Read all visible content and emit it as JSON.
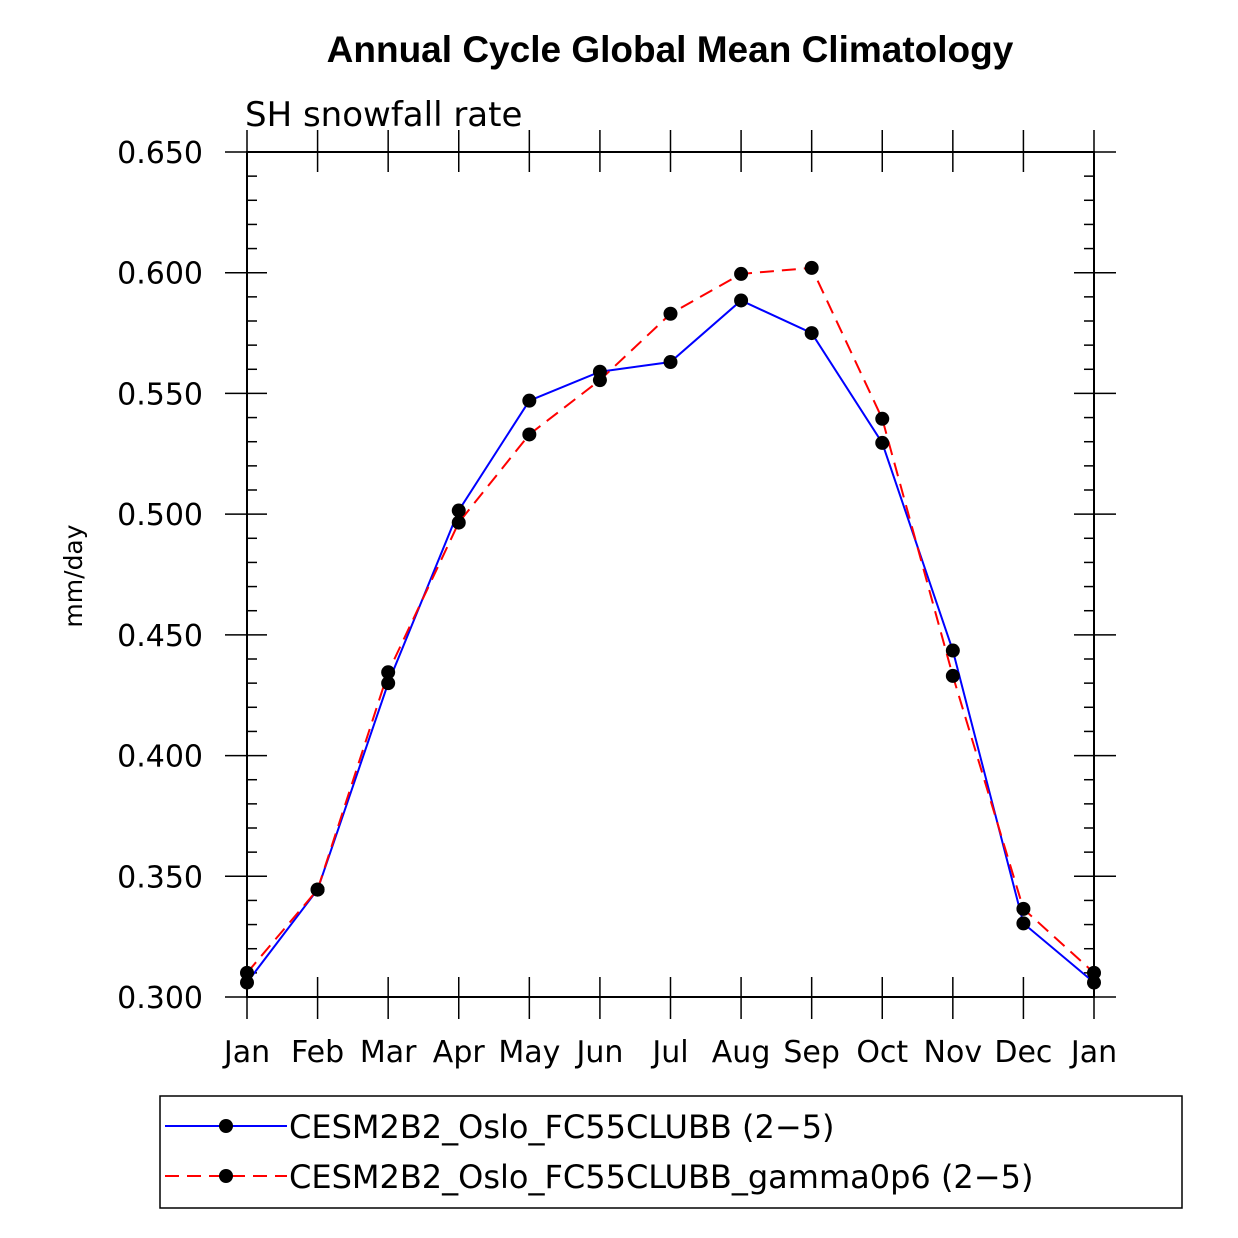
{
  "chart_data": {
    "type": "line",
    "title": "Annual Cycle Global Mean Climatology",
    "subtitle": "SH snowfall rate",
    "ylabel": "mm/day",
    "xlabel": "",
    "categories": [
      "Jan",
      "Feb",
      "Mar",
      "Apr",
      "May",
      "Jun",
      "Jul",
      "Aug",
      "Sep",
      "Oct",
      "Nov",
      "Dec",
      "Jan"
    ],
    "ylim": [
      0.3,
      0.65
    ],
    "yticks": [
      "0.300",
      "0.350",
      "0.400",
      "0.450",
      "0.500",
      "0.550",
      "0.600",
      "0.650"
    ],
    "legend_position": "bottom",
    "series": [
      {
        "name": "CESM2B2_Oslo_FC55CLUBB (2-5)",
        "legend_label": "CESM2B2_Oslo_FC55CLUBB (2−5)",
        "color": "#0000ff",
        "dash": "solid",
        "values": [
          0.306,
          0.3445,
          0.43,
          0.5015,
          0.547,
          0.559,
          0.563,
          0.5885,
          0.575,
          0.5295,
          0.4435,
          0.3305,
          0.306
        ]
      },
      {
        "name": "CESM2B2_Oslo_FC55CLUBB_gamma0p6 (2-5)",
        "legend_label": "CESM2B2_Oslo_FC55CLUBB_gamma0p6 (2−5)",
        "color": "#ff0000",
        "dash": "dashed",
        "values": [
          0.31,
          0.3445,
          0.4345,
          0.4965,
          0.533,
          0.5555,
          0.583,
          0.5995,
          0.602,
          0.5395,
          0.433,
          0.3365,
          0.31
        ]
      }
    ],
    "marker_color": "#000000"
  }
}
